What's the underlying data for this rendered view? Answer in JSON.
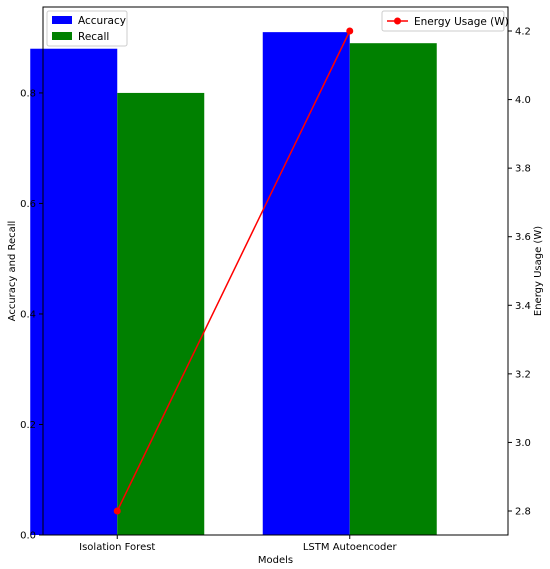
{
  "chart_data": {
    "type": "bar",
    "categories": [
      "Isolation Forest",
      "LSTM Autoencoder"
    ],
    "series": [
      {
        "name": "Accuracy",
        "values": [
          0.88,
          0.91
        ],
        "color": "#0000ff",
        "axis": "left"
      },
      {
        "name": "Recall",
        "values": [
          0.8,
          0.89
        ],
        "color": "#008000",
        "axis": "left"
      }
    ],
    "line_series": {
      "name": "Energy Usage (W)",
      "type": "line",
      "values": [
        2.8,
        4.2
      ],
      "color": "#ff0000",
      "axis": "right"
    },
    "xlabel": "Models",
    "ylabel": "Accuracy and Recall",
    "y2label": "Energy Usage (W)",
    "ylim": [
      0,
      0.9555
    ],
    "y2lim": [
      2.73,
      4.27
    ],
    "yticks": [
      "0.0",
      "0.2",
      "0.4",
      "0.6",
      "0.8"
    ],
    "y2ticks": [
      "2.8",
      "3.0",
      "3.2",
      "3.4",
      "3.6",
      "3.8",
      "4.0",
      "4.2"
    ],
    "legend_left_placement": "top-left",
    "legend_right_placement": "top-right",
    "grid": false
  }
}
